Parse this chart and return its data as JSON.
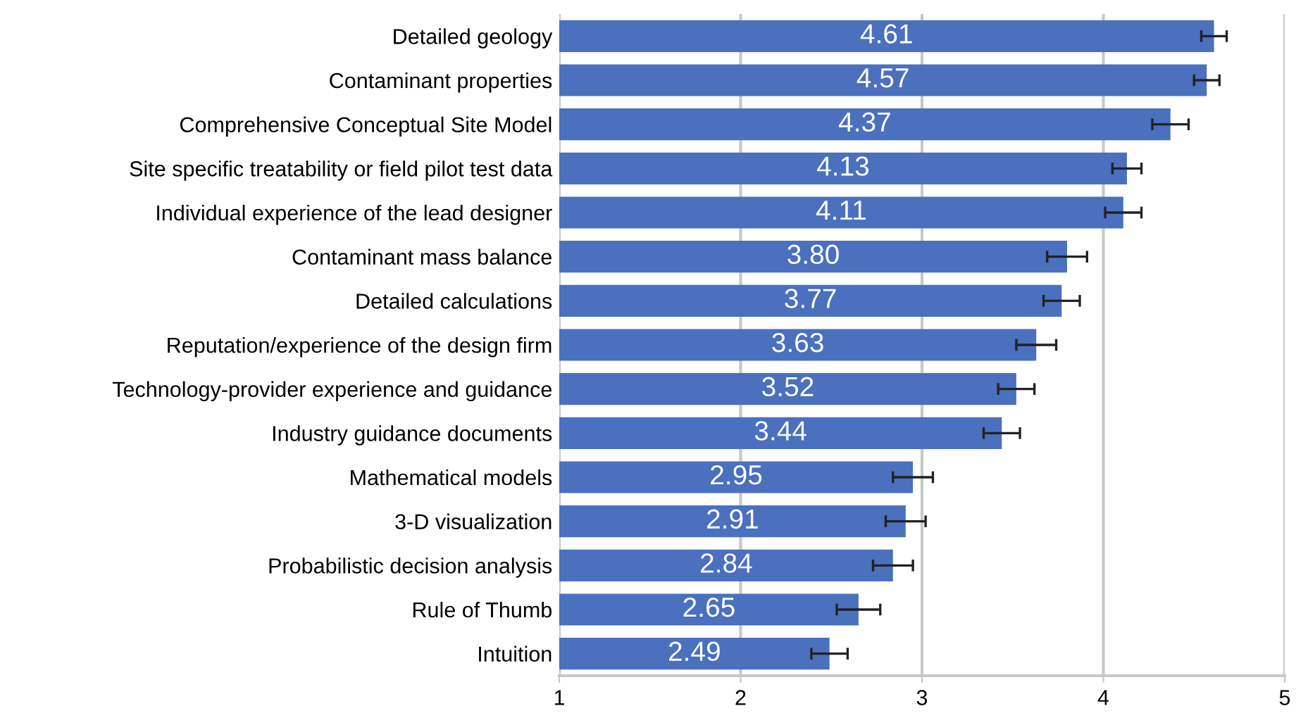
{
  "chart_data": {
    "type": "bar",
    "orientation": "horizontal",
    "categories": [
      "Detailed geology",
      "Contaminant properties",
      "Comprehensive Conceptual Site Model",
      "Site specific treatability or field pilot test data",
      "Individual experience of the lead designer",
      "Contaminant mass balance",
      "Detailed calculations",
      "Reputation/experience of the design firm",
      "Technology-provider experience and guidance",
      "Industry guidance documents",
      "Mathematical models",
      "3-D visualization",
      "Probabilistic decision analysis",
      "Rule of Thumb",
      "Intuition"
    ],
    "values": [
      4.61,
      4.57,
      4.37,
      4.13,
      4.11,
      3.8,
      3.77,
      3.63,
      3.52,
      3.44,
      2.95,
      2.91,
      2.84,
      2.65,
      2.49
    ],
    "errors": [
      0.07,
      0.07,
      0.1,
      0.08,
      0.1,
      0.11,
      0.1,
      0.11,
      0.1,
      0.1,
      0.11,
      0.11,
      0.11,
      0.12,
      0.1
    ],
    "value_labels": [
      "4.61",
      "4.57",
      "4.37",
      "4.13",
      "4.11",
      "3.80",
      "3.77",
      "3.63",
      "3.52",
      "3.44",
      "2.95",
      "2.91",
      "2.84",
      "2.65",
      "2.49"
    ],
    "color": "#4a70be",
    "xlim": [
      1,
      5
    ],
    "xticks": [
      1,
      2,
      3,
      4,
      5
    ],
    "grid": "x"
  }
}
